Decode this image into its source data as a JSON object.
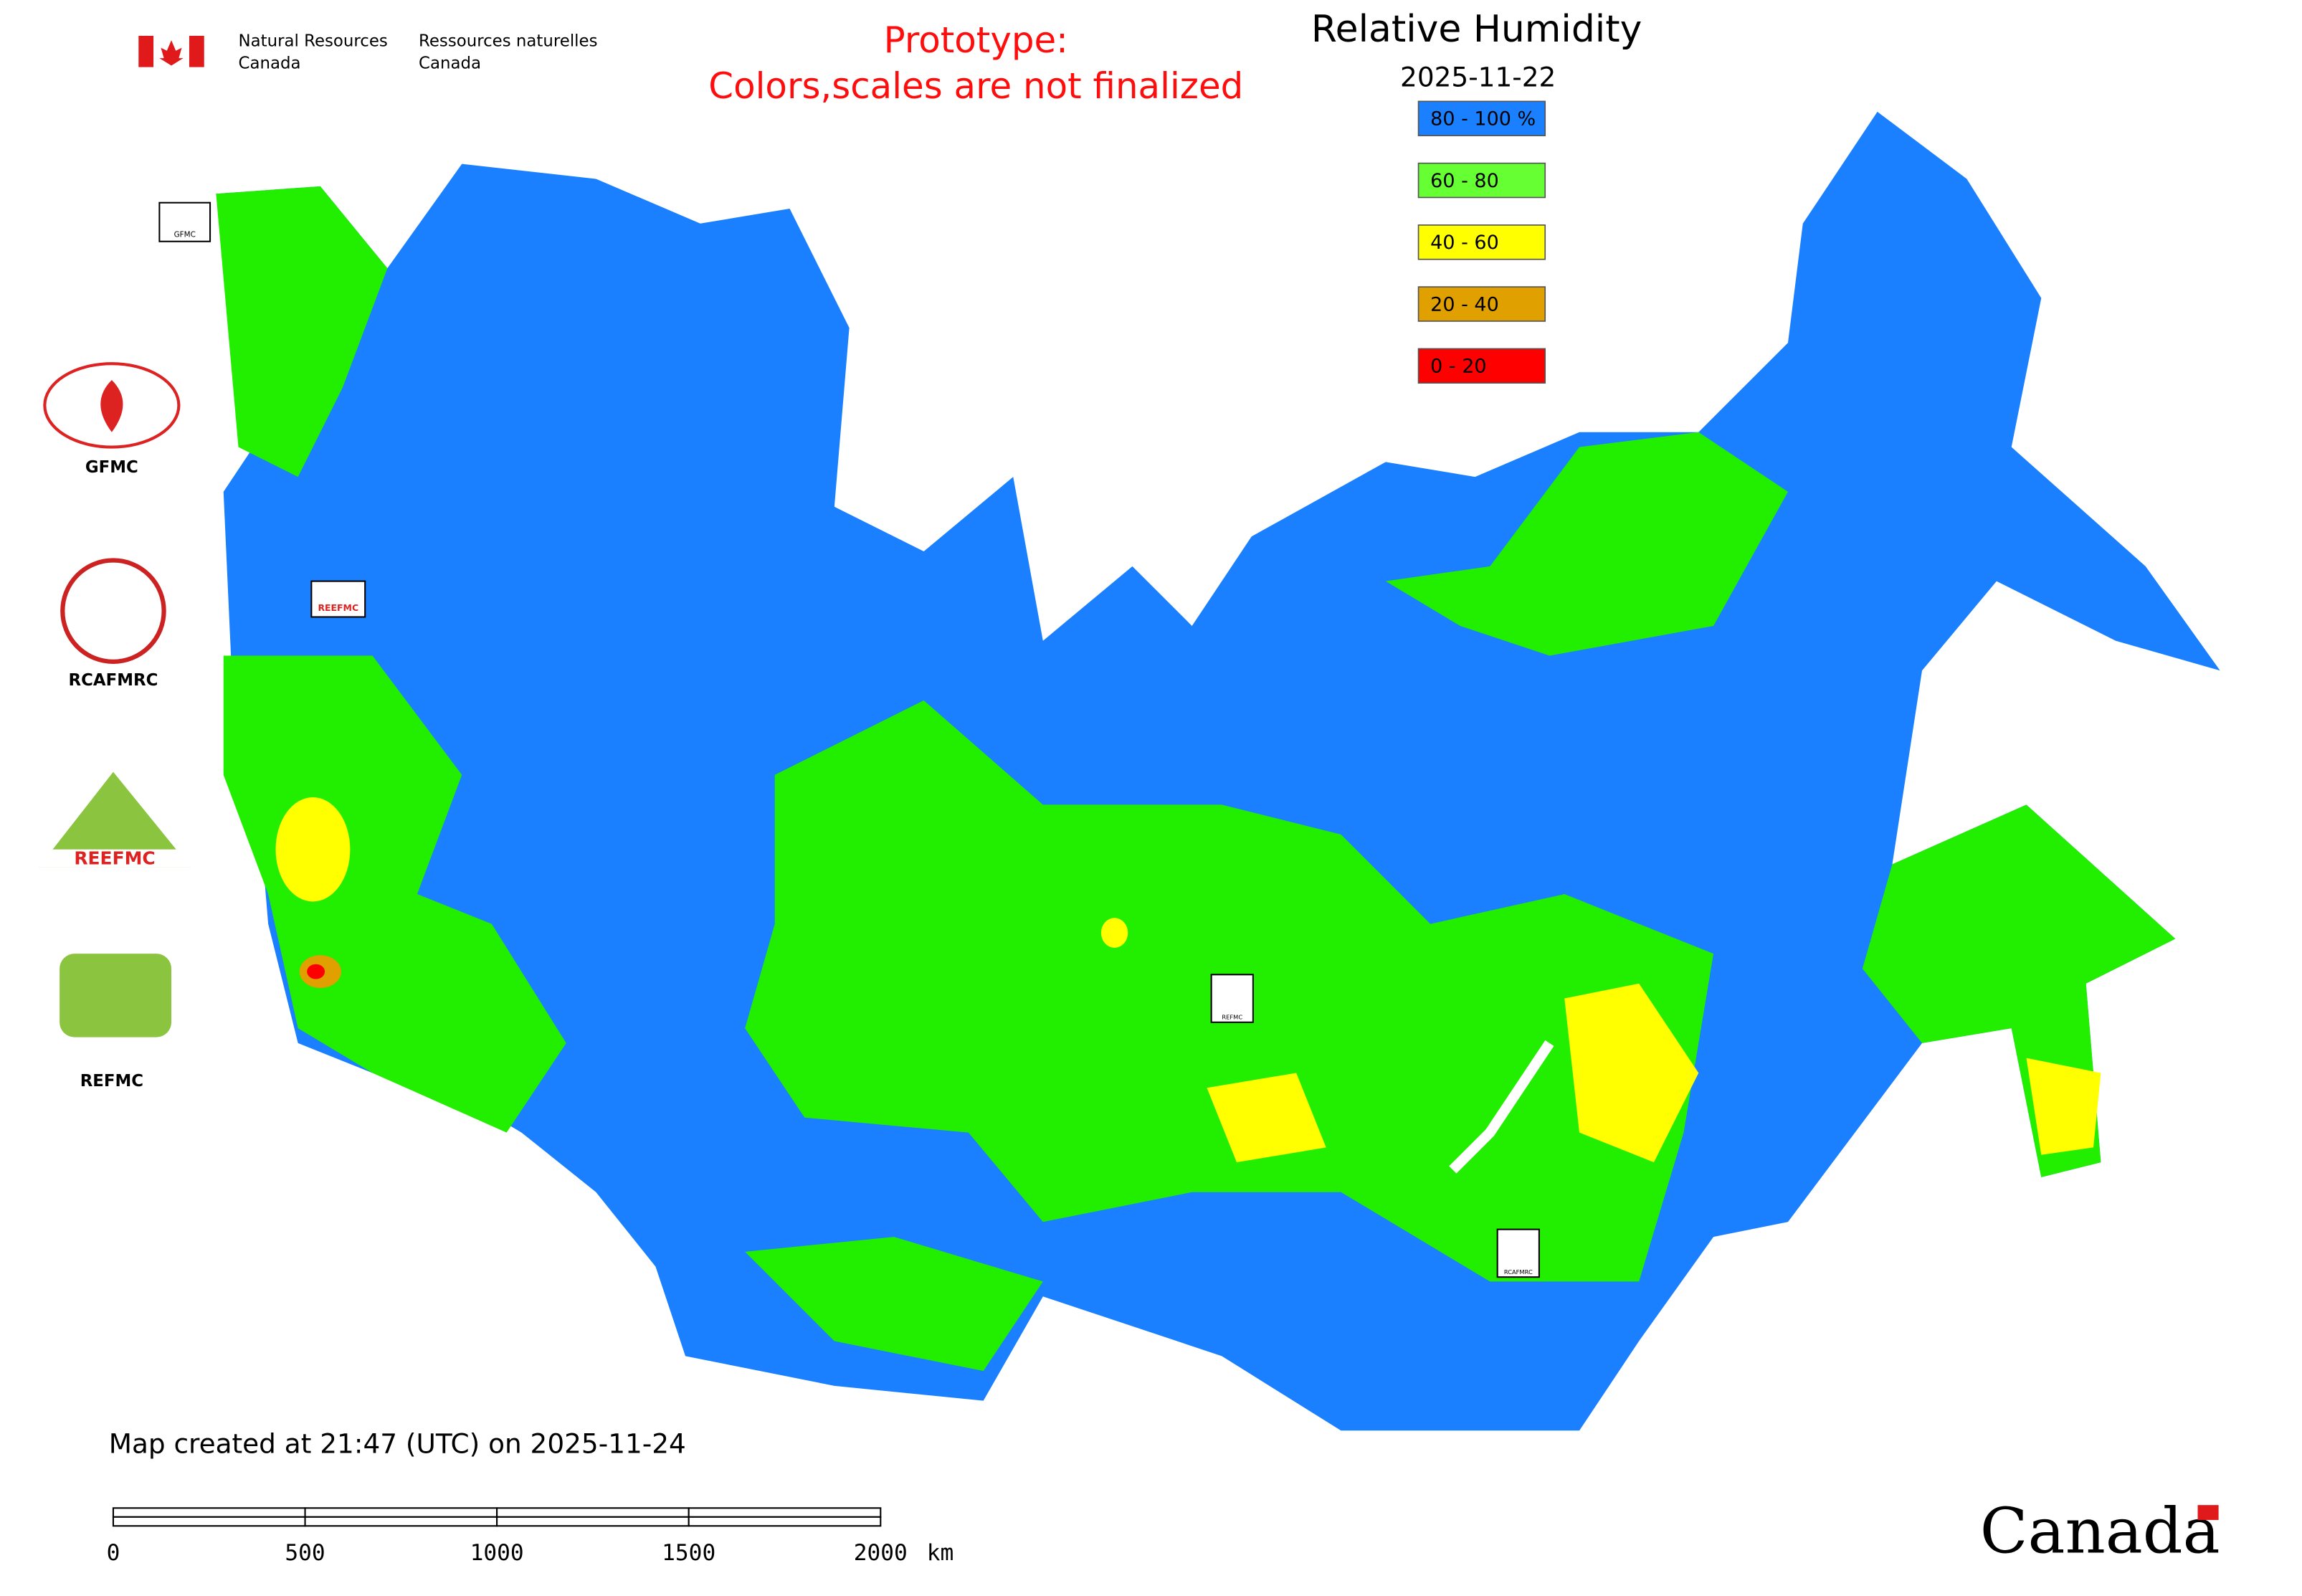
{
  "header": {
    "org_en": [
      "Natural Resources",
      "Canada"
    ],
    "org_fr": [
      "Ressources naturelles",
      "Canada"
    ]
  },
  "notice": [
    "Prototype:",
    "Colors,scales are not finalized"
  ],
  "title": "Relative Humidity",
  "date": "2025-11-22",
  "legend": [
    {
      "label": "80 - 100 %",
      "color": "#1a80ff"
    },
    {
      "label": "60 - 80",
      "color": "#66ff33"
    },
    {
      "label": "40 - 60",
      "color": "#ffff00"
    },
    {
      "label": "20 - 40",
      "color": "#e0a000"
    },
    {
      "label": "0 - 20",
      "color": "#ff0000"
    }
  ],
  "logos": [
    "GFMC",
    "RCAFMRC",
    "REEFMC",
    "REFMC"
  ],
  "map_markers": [
    "GFMC",
    "REEFMC",
    "REFMC",
    "RCAFMRC"
  ],
  "footer": "Map created at 21:47 (UTC) on 2025-11-24",
  "scale_bar": {
    "labels": [
      "0",
      "500",
      "1000",
      "1500",
      "2000"
    ],
    "unit": "km"
  },
  "wordmark": "Canada"
}
